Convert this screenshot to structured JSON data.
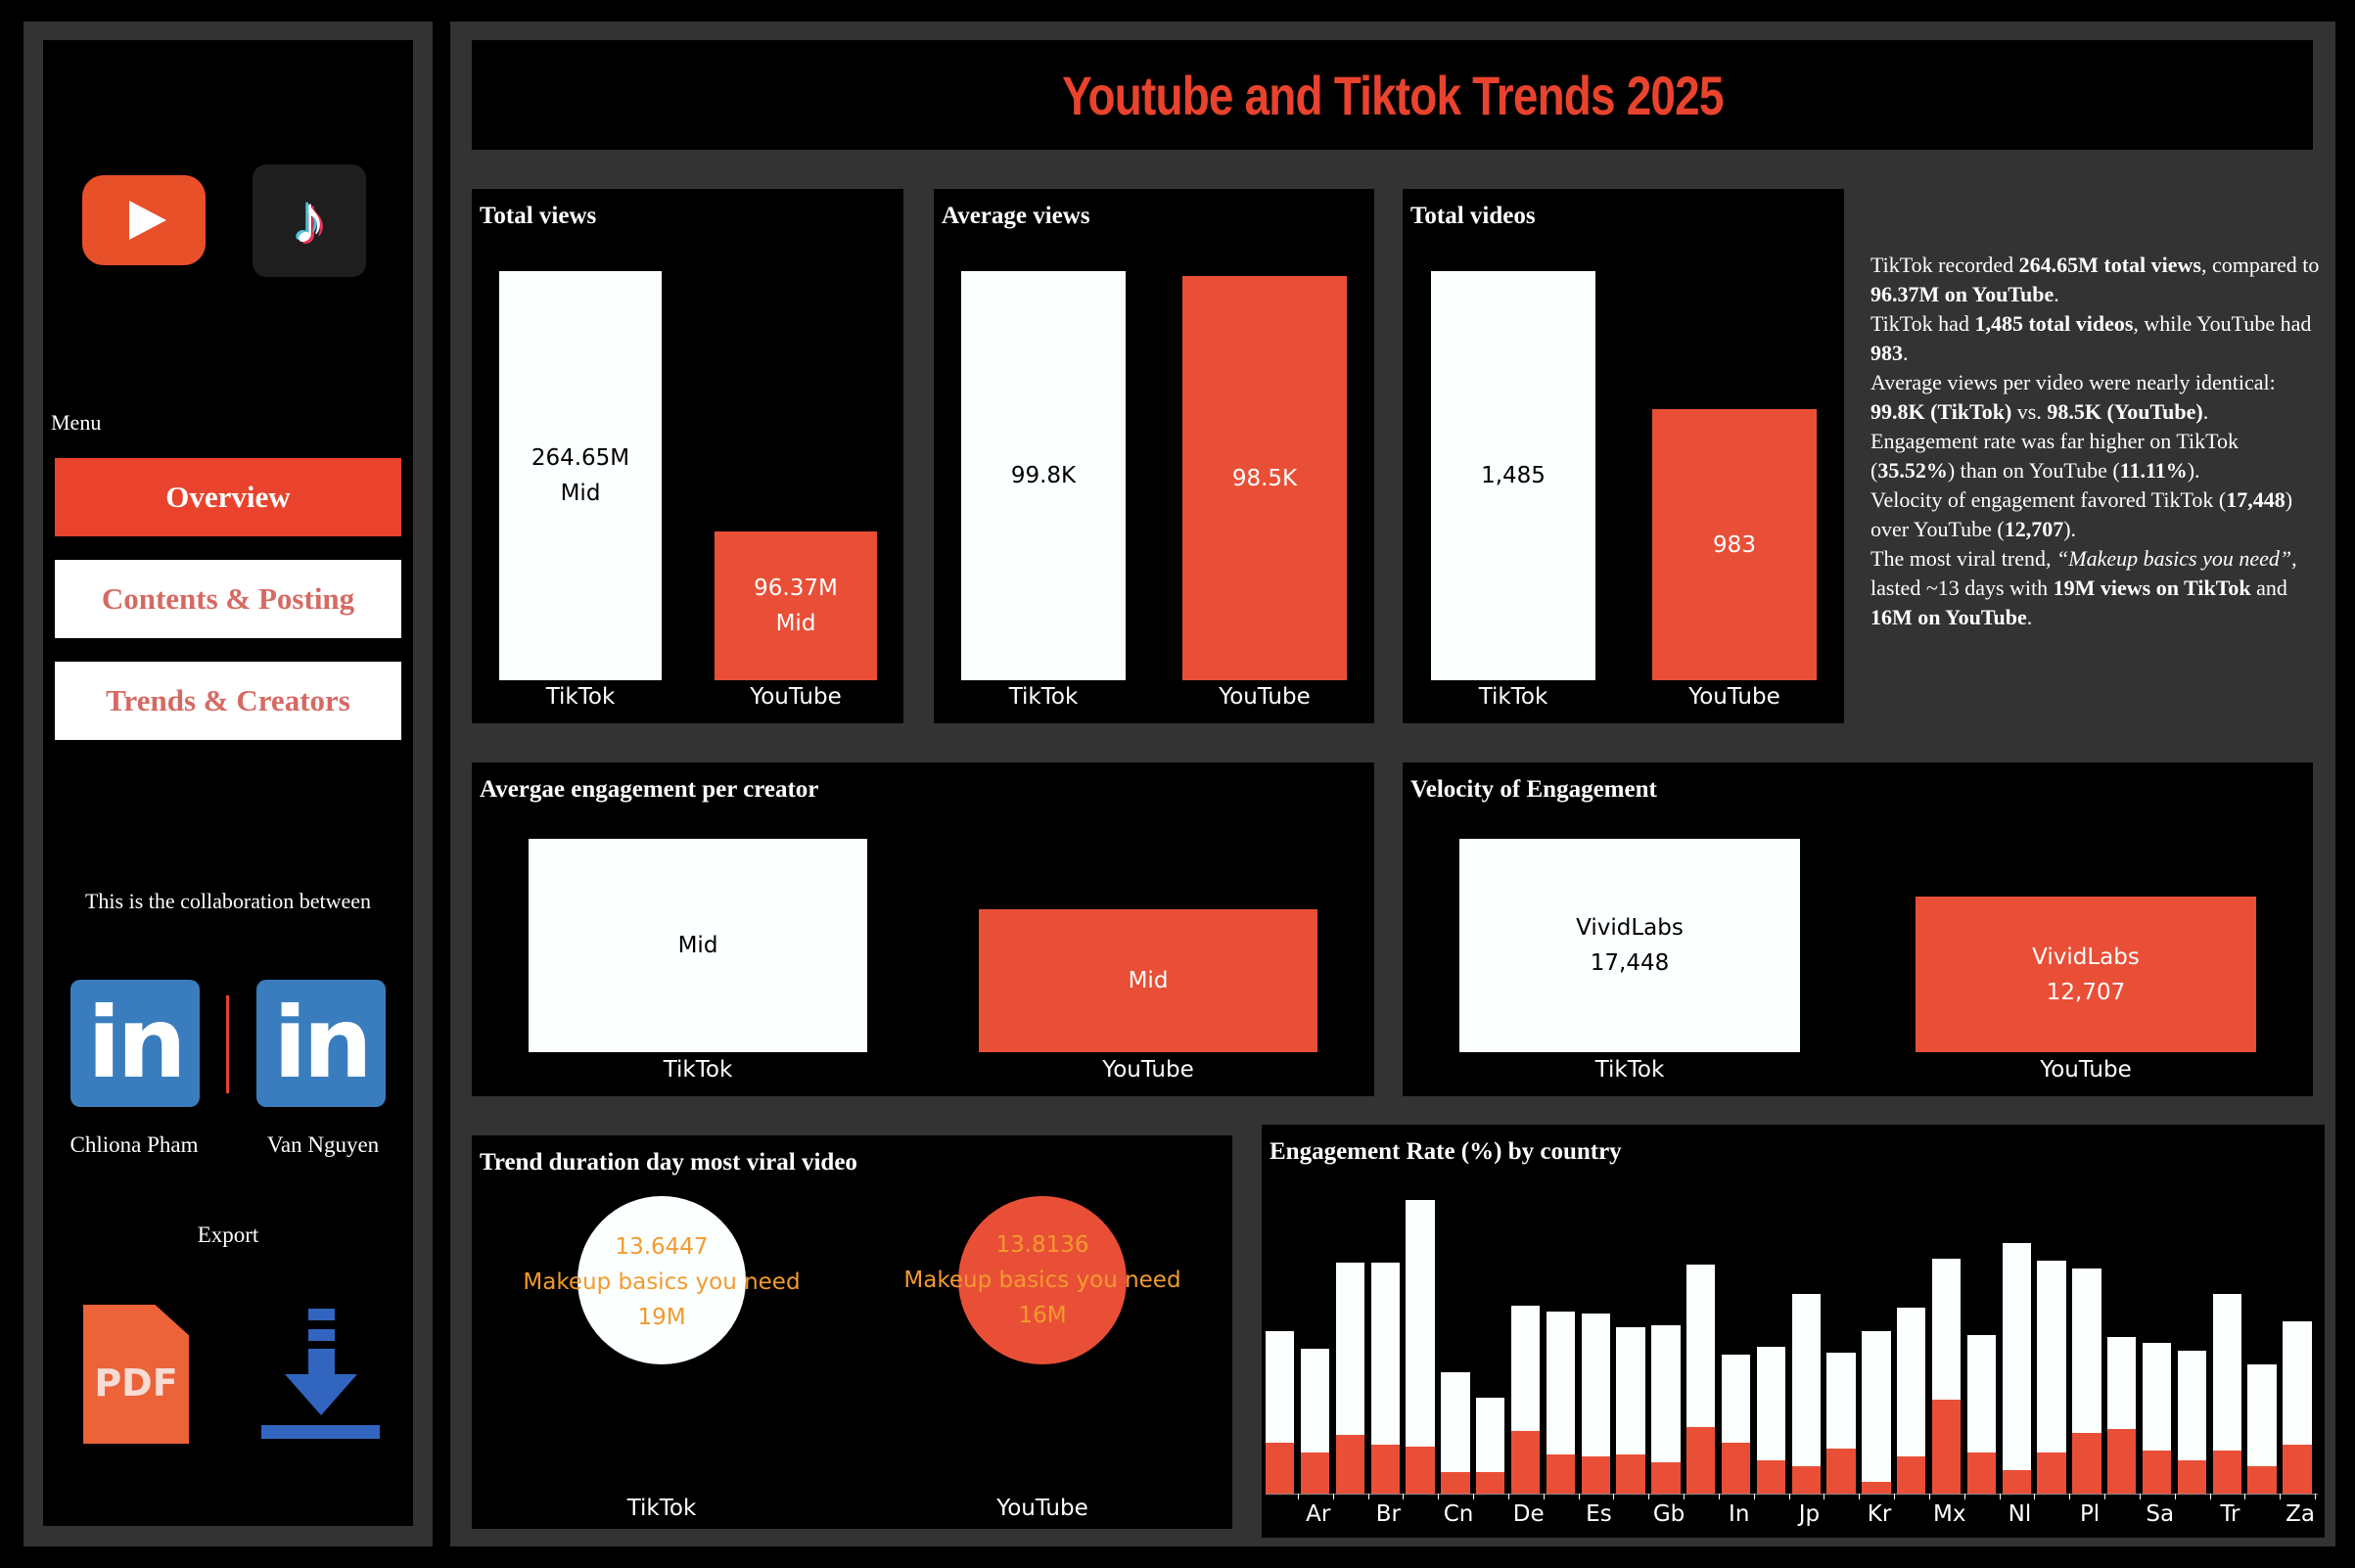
{
  "sidebar": {
    "menu_label": "Menu",
    "menu_items": [
      {
        "label": "Overview",
        "active": true
      },
      {
        "label": "Contents & Posting",
        "active": false
      },
      {
        "label": "Trends & Creators",
        "active": false
      }
    ],
    "collab_text": "This is the collaboration between",
    "creators": [
      {
        "name": "Chliona Pham",
        "icon": "linkedin-icon"
      },
      {
        "name": "Van Nguyen",
        "icon": "linkedin-icon"
      }
    ],
    "export_label": "Export",
    "export_pdf_icon_text": "PDF",
    "logos": [
      "youtube-logo",
      "tiktok-logo"
    ]
  },
  "header": {
    "title": "Youtube and Tiktok Trends 2025"
  },
  "colors": {
    "accent": "#e94f37",
    "tiktok": "#fbfffd",
    "youtube": "#e94f37",
    "panel_bg": "#000000",
    "frame": "#333333",
    "circle_text": "#f39a2f"
  },
  "kpis": {
    "total_views": {
      "title": "Total views",
      "tiktok": {
        "label": "TikTok",
        "value": 264.65,
        "text": "264.65M",
        "sub": "Mid"
      },
      "youtube": {
        "label": "YouTube",
        "value": 96.37,
        "text": "96.37M",
        "sub": "Mid"
      }
    },
    "average_views": {
      "title": "Average views",
      "tiktok": {
        "label": "TikTok",
        "value": 99.8,
        "text": "99.8K"
      },
      "youtube": {
        "label": "YouTube",
        "value": 98.5,
        "text": "98.5K"
      }
    },
    "total_videos": {
      "title": "Total videos",
      "tiktok": {
        "label": "TikTok",
        "value": 1485,
        "text": "1,485"
      },
      "youtube": {
        "label": "YouTube",
        "value": 983,
        "text": "983"
      }
    }
  },
  "summary": {
    "p1a": "TikTok recorded ",
    "p1b": "264.65M total views",
    "p1c": ", compared to ",
    "p1d": "96.37M on YouTube",
    "p1e": ".",
    "p2a": "TikTok had ",
    "p2b": "1,485 total videos",
    "p2c": ", while YouTube had ",
    "p2d": "983",
    "p2e": ".",
    "p3a": "Average views per video were nearly identical: ",
    "p3b": "99.8K (TikTok)",
    "p3c": " vs. ",
    "p3d": "98.5K (YouTube)",
    "p3e": ".",
    "p4a": "Engagement rate was far higher on TikTok (",
    "p4b": "35.52%",
    "p4c": ") than on YouTube (",
    "p4d": "11.11%",
    "p4e": ").",
    "p5a": "Velocity of engagement favored TikTok (",
    "p5b": "17,448",
    "p5c": ") over YouTube (",
    "p5d": "12,707",
    "p5e": ").",
    "p6a": "The most viral trend, ",
    "p6b": "“Makeup basics you need”",
    "p6c": ", lasted ~13 days with ",
    "p6d": "19M views on TikTok",
    "p6e": " and ",
    "p6f": "16M on YouTube",
    "p6g": "."
  },
  "engagement_per_creator": {
    "title": "Avergae engagement per creator",
    "tiktok": {
      "label": "TikTok",
      "text": "Mid"
    },
    "youtube": {
      "label": "YouTube",
      "text": "Mid"
    }
  },
  "velocity": {
    "title": "Velocity of Engagement",
    "tiktok": {
      "label": "TikTok",
      "creator": "VividLabs",
      "value": 17448,
      "text": "17,448"
    },
    "youtube": {
      "label": "YouTube",
      "creator": "VividLabs",
      "value": 12707,
      "text": "12,707"
    }
  },
  "trend_duration": {
    "title": "Trend duration day most viral video",
    "tiktok": {
      "label": "TikTok",
      "value": "13.6447",
      "trend": "Makeup basics you need",
      "views": "19M"
    },
    "youtube": {
      "label": "YouTube",
      "value": "13.8136",
      "trend": "Makeup basics you need",
      "views": "16M"
    }
  },
  "chart_data": {
    "type": "bar",
    "stacked": true,
    "title": "Engagement Rate (%) by country",
    "categories": [
      "",
      "Ar",
      "",
      "Br",
      "",
      "Cn",
      "",
      "De",
      "",
      "Es",
      "",
      "Gb",
      "",
      "In",
      "",
      "Jp",
      "",
      "Kr",
      "",
      "Mx",
      "",
      "Nl",
      "",
      "Pl",
      "",
      "Sa",
      "",
      "Tr",
      "",
      "Za"
    ],
    "series": [
      {
        "key": "youtube",
        "color": "#e94f37",
        "values": [
          13.0,
          10.5,
          15.0,
          12.5,
          12.0,
          5.5,
          5.5,
          16.0,
          10.0,
          9.5,
          10.0,
          8.0,
          17.0,
          13.0,
          8.5,
          7.0,
          11.5,
          3.0,
          9.5,
          24.0,
          10.5,
          6.0,
          10.5,
          15.5,
          16.5,
          11.0,
          8.5,
          11.0,
          7.0,
          12.5
        ]
      },
      {
        "key": "tiktok",
        "color": "#fbfffd",
        "values": [
          28.5,
          26.5,
          44.0,
          46.5,
          63.0,
          25.5,
          19.0,
          32.0,
          36.5,
          36.5,
          32.5,
          35.0,
          41.5,
          22.5,
          29.0,
          44.0,
          24.5,
          38.5,
          38.0,
          36.0,
          30.0,
          58.0,
          49.0,
          42.0,
          23.5,
          27.5,
          28.0,
          40.0,
          26.0,
          31.5
        ]
      }
    ],
    "xlabel": "",
    "ylabel": "",
    "grid": false,
    "legend": "none"
  }
}
